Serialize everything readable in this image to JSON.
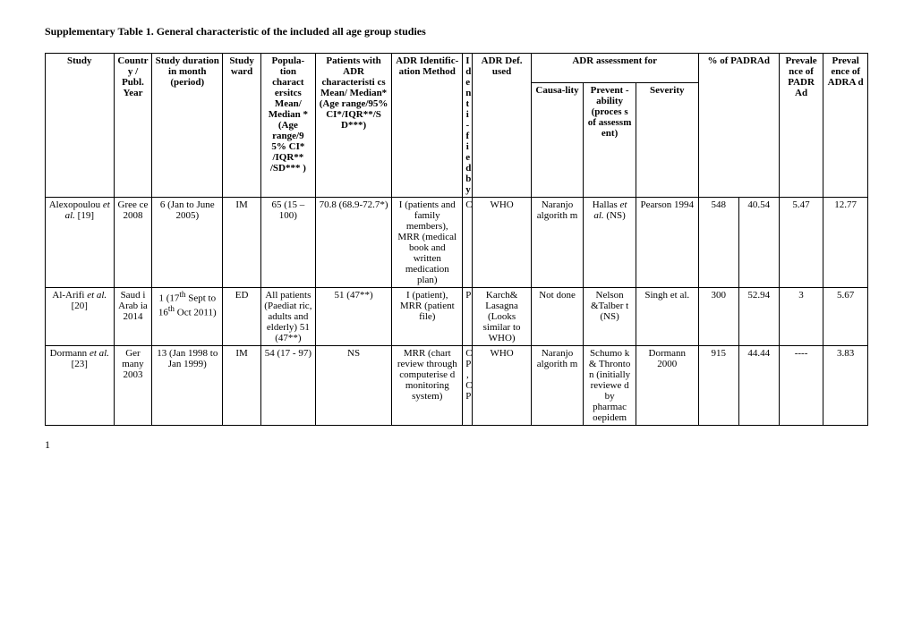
{
  "title": "Supplementary Table 1. General characteristic of the included all age group studies",
  "pagenum": "1",
  "colwidths": [
    "68",
    "38",
    "70",
    "38",
    "54",
    "76",
    "70",
    "10",
    "58",
    "52",
    "52",
    "62",
    "40",
    "40",
    "44",
    "44"
  ],
  "headers": {
    "study": "Study",
    "country": "Country / Publ. Year",
    "duration": "Study duration in month (period)",
    "ward": "Study ward",
    "popchar": "Popula-tion charact ersitcs Mean/ Median * (Age range/9 5% CI* /IQR** /SD*** )",
    "patchar": "Patients with ADR characteristi cs Mean/ Median* (Age range/95% CI*/IQR**/S D***)",
    "identmethod": "ADR Identific-ation Method",
    "identby": "Identi-fied by",
    "defused": "ADR Def. used",
    "assessgroup": "ADR assessment for",
    "causality": "Causa-lity",
    "prevent": "Prevent -ability (proces s of assessm ent)",
    "severity": "Severity",
    "pctgroup": "% of PADRAd",
    "prevPADR": "Prevale nce of PADR Ad",
    "prevADRA": "Preval ence of ADRA d"
  },
  "rows": [
    {
      "study": "Alexopoulou et al. [19]",
      "study_html": "Alexopoulou <span class=\"ital\">et al.</span> [19]",
      "country": "Gree ce 2008",
      "duration": "6 (Jan to June 2005)",
      "ward": "IM",
      "popchar": "65 (15 – 100)",
      "patchar": "70.8 (68.9-72.7*)",
      "identmethod": "I (patients and family members), MRR (medical book and written medication plan)",
      "identby": "C",
      "defused": "WHO",
      "causality": "Naranjo algorith m",
      "prevent": "Hallas et al. (NS)",
      "prevent_html": "Hallas <span class=\"ital\">et al.</span> (NS)",
      "severity": "Pearson 1994",
      "pct1": "548",
      "pct2": "40.54",
      "prevPADR": "5.47",
      "prevADRA": "12.77"
    },
    {
      "study": "Al-Arifi et al. [20]",
      "study_html": "Al-Arifi <span class=\"ital\">et al.</span> [20]",
      "country": "Saud i Arab ia 2014",
      "duration": "1 (17th Sept to 16th Oct 2011)",
      "duration_html": "1 (17<sup>th</sup> Sept to 16<sup>th</sup> Oct 2011)",
      "ward": "ED",
      "popchar": "All patients (Paediat ric, adults and elderly) 51 (47**)",
      "patchar": "51 (47**)",
      "identmethod": "I (patient), MRR (patient file)",
      "identby": "P",
      "defused": "Karch& Lasagna (Looks similar to WHO)",
      "causality": "Not done",
      "prevent": "Nelson &Talber t (NS)",
      "severity": "Singh et al.",
      "pct1": "300",
      "pct2": "52.94",
      "prevPADR": "3",
      "prevADRA": "5.67"
    },
    {
      "study": "Dormann et al. [23]",
      "study_html": "Dormann <span class=\"ital\">et al.</span> [23]",
      "country": "Ger many 2003",
      "duration": "13 (Jan 1998 to Jan 1999)",
      "ward": "IM",
      "popchar": "54 (17 - 97)",
      "patchar": "NS",
      "identmethod": "MRR (chart review through computerise d monitoring system)",
      "identby": "C P , C P",
      "defused": "WHO",
      "causality": "Naranjo algorith m",
      "prevent": "Schumo k & Thronto n (initially reviewe d by pharmac oepidem",
      "severity": "Dormann 2000",
      "pct1": "915",
      "pct2": "44.44",
      "prevPADR": "----",
      "prevADRA": "3.83"
    }
  ]
}
